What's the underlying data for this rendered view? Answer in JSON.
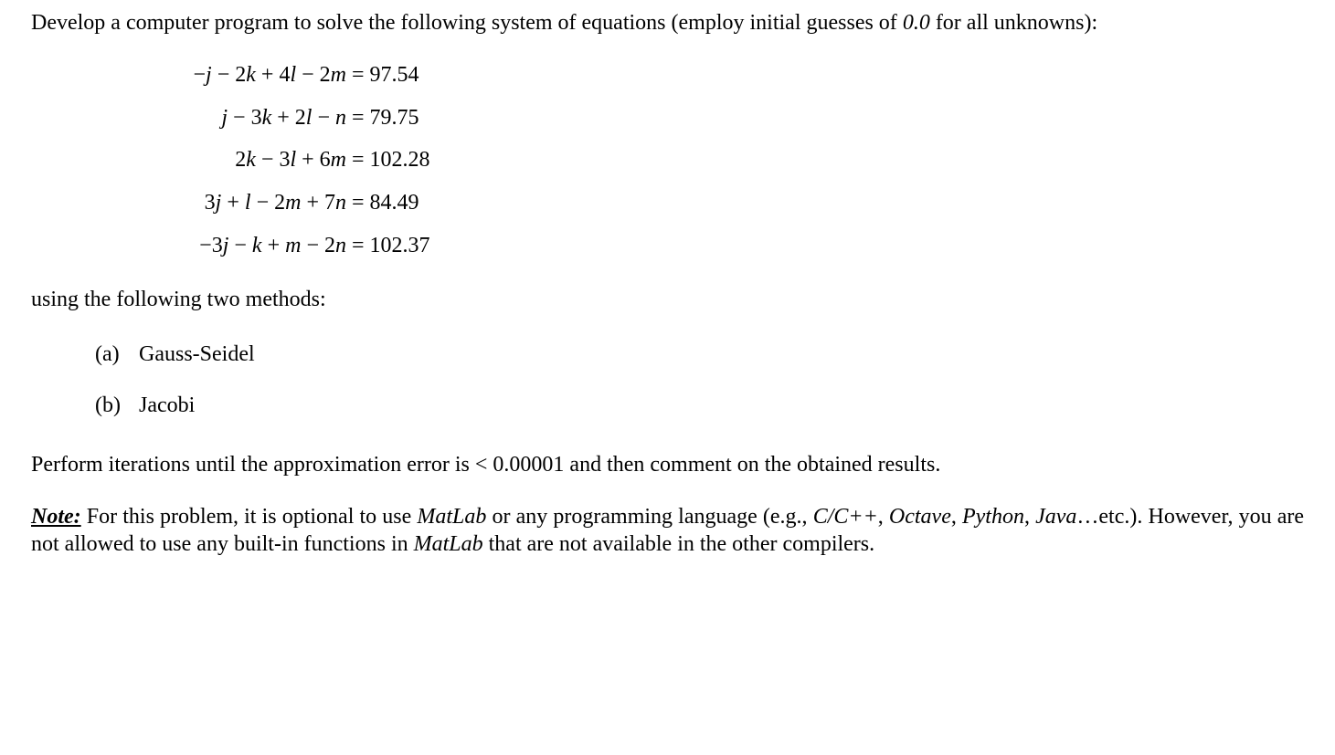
{
  "text_color": "#000000",
  "background_color": "#ffffff",
  "base_font_size_pt": 18,
  "font_family": "Times New Roman",
  "intro": {
    "part1": "Develop a computer program to solve the following system of equations (employ initial guesses of ",
    "guess": "0.0",
    "part2": " for all unknowns):"
  },
  "equations": [
    {
      "lhs_html": "−<i>j</i> − 2<i>k</i> + 4<i>l</i> − 2<i>m</i>",
      "rhs": "97.54"
    },
    {
      "lhs_html": "<i>j</i> − 3<i>k</i> + 2<i>l</i> − <i>n</i>",
      "rhs": "79.75"
    },
    {
      "lhs_html": "2<i>k</i> − 3<i>l</i> + 6<i>m</i>",
      "rhs": "102.28"
    },
    {
      "lhs_html": "3<i>j</i> + <i>l</i> − 2<i>m</i> + 7<i>n</i>",
      "rhs": "84.49"
    },
    {
      "lhs_html": "−3<i>j</i> − <i>k</i> + <i>m</i> − 2<i>n</i>",
      "rhs": "102.37"
    }
  ],
  "methods_intro": "using the following two methods:",
  "methods": [
    {
      "label": "(a)",
      "name": "Gauss-Seidel"
    },
    {
      "label": "(b)",
      "name": "Jacobi"
    }
  ],
  "tolerance_line": "Perform iterations until the approximation error is < 0.00001 and then comment on the obtained results.",
  "note": {
    "lead": "Note:",
    "part1": " For this problem, it is optional to use ",
    "matlab1": "MatLab",
    "part2": " or any programming language (e.g., ",
    "langs": "C/C++",
    "comma1": ", ",
    "lang2": "Octave",
    "comma2": ", ",
    "lang3": "Python",
    "comma3": ", ",
    "lang4": "Java",
    "part3": "…etc.). However, you are not allowed to use any built-in functions in ",
    "matlab2": "MatLab",
    "part4": " that are not available in the other compilers."
  }
}
